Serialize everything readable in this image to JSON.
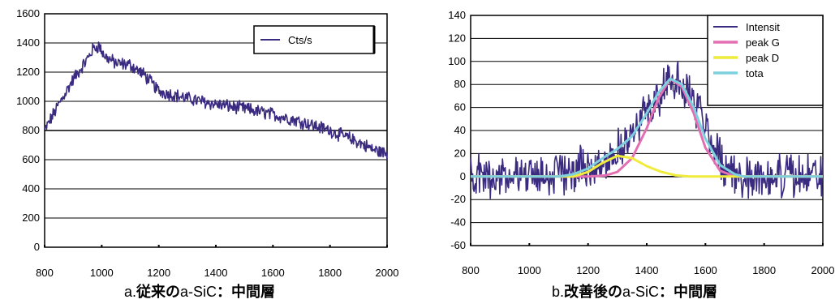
{
  "chart_data": [
    {
      "type": "line",
      "caption": {
        "prefix": "a.",
        "bold1": "従来の",
        "mid": "a-SiC",
        "bold2": "：中間層"
      },
      "legend": [
        "Cts/s"
      ],
      "xlim": [
        800,
        2000
      ],
      "ylim": [
        0,
        1600
      ],
      "xticks": [
        800,
        1000,
        1200,
        1400,
        1600,
        1800,
        2000
      ],
      "yticks": [
        0,
        200,
        400,
        600,
        800,
        1000,
        1200,
        1400,
        1600
      ],
      "grid": true,
      "legend_position": "top-right",
      "series": [
        {
          "name": "Cts/s",
          "color": "#3a2a80",
          "noise": 40,
          "x": [
            800,
            850,
            900,
            950,
            970,
            990,
            1010,
            1050,
            1100,
            1150,
            1200,
            1300,
            1400,
            1500,
            1600,
            1700,
            1800,
            1900,
            1950,
            2000
          ],
          "y": [
            800,
            980,
            1150,
            1290,
            1360,
            1380,
            1310,
            1260,
            1250,
            1180,
            1070,
            1020,
            980,
            950,
            910,
            860,
            800,
            720,
            670,
            640
          ]
        }
      ]
    },
    {
      "type": "line",
      "caption": {
        "prefix": "b.",
        "bold1": "改善後の",
        "mid": "a-SiC",
        "bold2": "：中間層"
      },
      "legend": [
        "Intensit",
        "peak G",
        "peak D",
        "tota"
      ],
      "xlim": [
        800,
        2000
      ],
      "ylim": [
        -60,
        140
      ],
      "xticks": [
        800,
        1000,
        1200,
        1400,
        1600,
        1800,
        2000
      ],
      "yticks": [
        -60,
        -40,
        -20,
        0,
        20,
        40,
        60,
        80,
        100,
        120,
        140
      ],
      "grid": true,
      "legend_position": "top-right",
      "series": [
        {
          "name": "Intensit",
          "color": "#3a2a80",
          "noise": 16,
          "x": [
            800,
            1100,
            1250,
            1350,
            1420,
            1480,
            1540,
            1600,
            1660,
            1700,
            2000
          ],
          "y": [
            0,
            2,
            12,
            35,
            65,
            85,
            75,
            45,
            10,
            0,
            0
          ]
        },
        {
          "name": "peak G",
          "color": "#e36fb3",
          "x": [
            800,
            1200,
            1260,
            1300,
            1350,
            1400,
            1440,
            1480,
            1520,
            1560,
            1600,
            1650,
            1700,
            2000
          ],
          "y": [
            0,
            0,
            1,
            4,
            16,
            42,
            68,
            85,
            78,
            55,
            25,
            5,
            0,
            0
          ]
        },
        {
          "name": "peak D",
          "color": "#f0ec3c",
          "x": [
            800,
            1150,
            1200,
            1250,
            1300,
            1350,
            1400,
            1450,
            1500,
            1550,
            2000
          ],
          "y": [
            0,
            0,
            4,
            12,
            18,
            16,
            9,
            4,
            1,
            0,
            0
          ]
        },
        {
          "name": "tota",
          "color": "#7fd0de",
          "x": [
            800,
            1100,
            1150,
            1200,
            1250,
            1300,
            1350,
            1400,
            1440,
            1480,
            1520,
            1560,
            1600,
            1650,
            1700,
            1730,
            2000
          ],
          "y": [
            0,
            0,
            2,
            7,
            16,
            24,
            35,
            55,
            73,
            85,
            80,
            60,
            33,
            10,
            2,
            0,
            0
          ]
        }
      ]
    }
  ]
}
